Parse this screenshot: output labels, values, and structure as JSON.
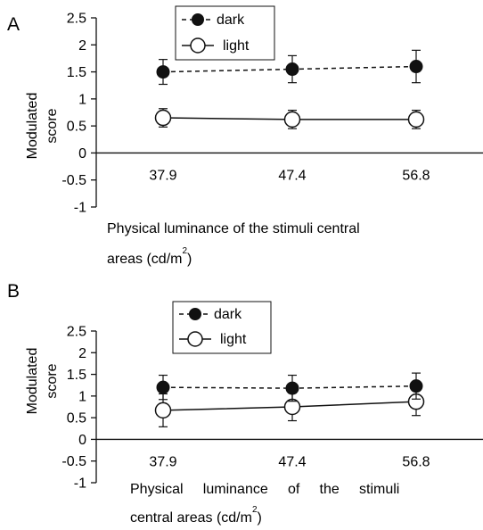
{
  "chart_data": [
    {
      "type": "line",
      "panel_label": "A",
      "categories": [
        "37.9",
        "47.4",
        "56.8"
      ],
      "ylabel_lines": [
        "Modulated",
        "score"
      ],
      "xlabel_lines": [
        "Physical  luminance  of  the  stimuli  central",
        "areas (cd/m",
        "2",
        ")"
      ],
      "ylim": [
        -1,
        2.5
      ],
      "yticks": [
        "2.5",
        "2",
        "1.5",
        "1",
        "0.5",
        "0",
        "-0.5",
        "-1"
      ],
      "legend_position": "top-center",
      "series": [
        {
          "name": "dark",
          "values": [
            1.5,
            1.55,
            1.6
          ],
          "error": [
            0.23,
            0.25,
            0.3
          ],
          "marker": "filled",
          "line": "dashed"
        },
        {
          "name": "light",
          "values": [
            0.65,
            0.62,
            0.62
          ],
          "error": [
            0.17,
            0.17,
            0.17
          ],
          "marker": "open",
          "line": "solid"
        }
      ]
    },
    {
      "type": "line",
      "panel_label": "B",
      "categories": [
        "37.9",
        "47.4",
        "56.8"
      ],
      "ylabel_lines": [
        "Modulated",
        "score"
      ],
      "xlabel_lines": [
        "Physical     luminance     of     the     stimuli",
        "central areas (cd/m",
        "2",
        ")"
      ],
      "ylim": [
        -1,
        2.5
      ],
      "yticks": [
        "2.5",
        "2",
        "1.5",
        "1",
        "0.5",
        "0",
        "-0.5",
        "-1"
      ],
      "legend_position": "top-center",
      "series": [
        {
          "name": "dark",
          "values": [
            1.2,
            1.18,
            1.23
          ],
          "error": [
            0.28,
            0.3,
            0.3
          ],
          "marker": "filled",
          "line": "dashed"
        },
        {
          "name": "light",
          "values": [
            0.67,
            0.75,
            0.87
          ],
          "error": [
            0.38,
            0.32,
            0.32
          ],
          "marker": "open",
          "line": "solid"
        }
      ]
    }
  ]
}
